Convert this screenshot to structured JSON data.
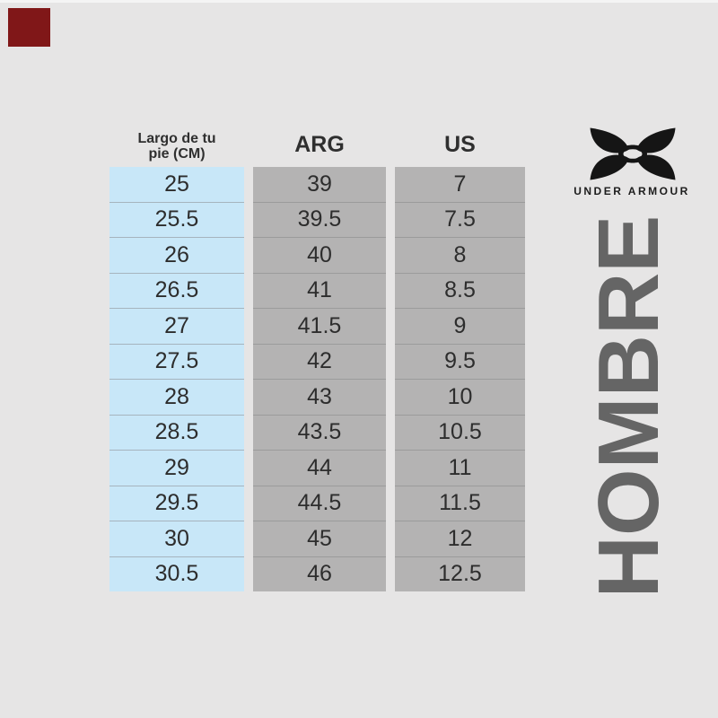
{
  "page": {
    "background_color": "#e6e5e5",
    "top_strip_color": "#f4f4f4",
    "accent_patch_color": "#801718"
  },
  "size_chart": {
    "header": {
      "foot_length_line1": "Largo de tu",
      "foot_length_line2": "pie (CM)",
      "arg": "ARG",
      "us": "US"
    },
    "colors": {
      "foot_length_column_bg": "#c8e7f8",
      "size_column_bg": "#b4b3b3",
      "row_divider": "#9b9b9b",
      "text": "#2d2d2d"
    },
    "rows": [
      {
        "cm": "25",
        "arg": "39",
        "us": "7"
      },
      {
        "cm": "25.5",
        "arg": "39.5",
        "us": "7.5"
      },
      {
        "cm": "26",
        "arg": "40",
        "us": "8"
      },
      {
        "cm": "26.5",
        "arg": "41",
        "us": "8.5"
      },
      {
        "cm": "27",
        "arg": "41.5",
        "us": "9"
      },
      {
        "cm": "27.5",
        "arg": "42",
        "us": "9.5"
      },
      {
        "cm": "28",
        "arg": "43",
        "us": "10"
      },
      {
        "cm": "28.5",
        "arg": "43.5",
        "us": "10.5"
      },
      {
        "cm": "29",
        "arg": "44",
        "us": "11"
      },
      {
        "cm": "29.5",
        "arg": "44.5",
        "us": "11.5"
      },
      {
        "cm": "30",
        "arg": "45",
        "us": "12"
      },
      {
        "cm": "30.5",
        "arg": "46",
        "us": "12.5"
      }
    ]
  },
  "brand": {
    "logo": "under-armour-logo",
    "logo_color": "#151515",
    "wordmark": "UNDER ARMOUR"
  },
  "category_label": {
    "text": "HOMBRE",
    "color": "#656565"
  },
  "chart_data": {
    "type": "table",
    "columns": [
      "Largo de tu pie (CM)",
      "ARG",
      "US"
    ],
    "rows": [
      [
        "25",
        "39",
        "7"
      ],
      [
        "25.5",
        "39.5",
        "7.5"
      ],
      [
        "26",
        "40",
        "8"
      ],
      [
        "26.5",
        "41",
        "8.5"
      ],
      [
        "27",
        "41.5",
        "9"
      ],
      [
        "27.5",
        "42",
        "9.5"
      ],
      [
        "28",
        "43",
        "10"
      ],
      [
        "28.5",
        "43.5",
        "10.5"
      ],
      [
        "29",
        "44",
        "11"
      ],
      [
        "29.5",
        "44.5",
        "11.5"
      ],
      [
        "30",
        "45",
        "12"
      ],
      [
        "30.5",
        "46",
        "12.5"
      ]
    ]
  }
}
